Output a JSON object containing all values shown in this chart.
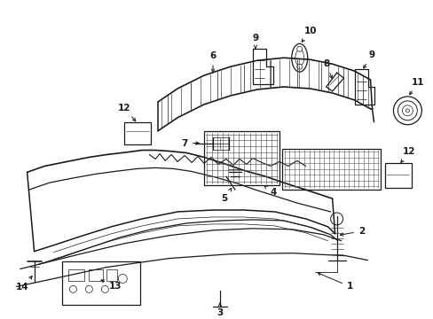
{
  "background_color": "#ffffff",
  "line_color": "#1a1a1a",
  "label_fontsize": 7.5,
  "fig_width": 4.89,
  "fig_height": 3.6,
  "dpi": 100
}
